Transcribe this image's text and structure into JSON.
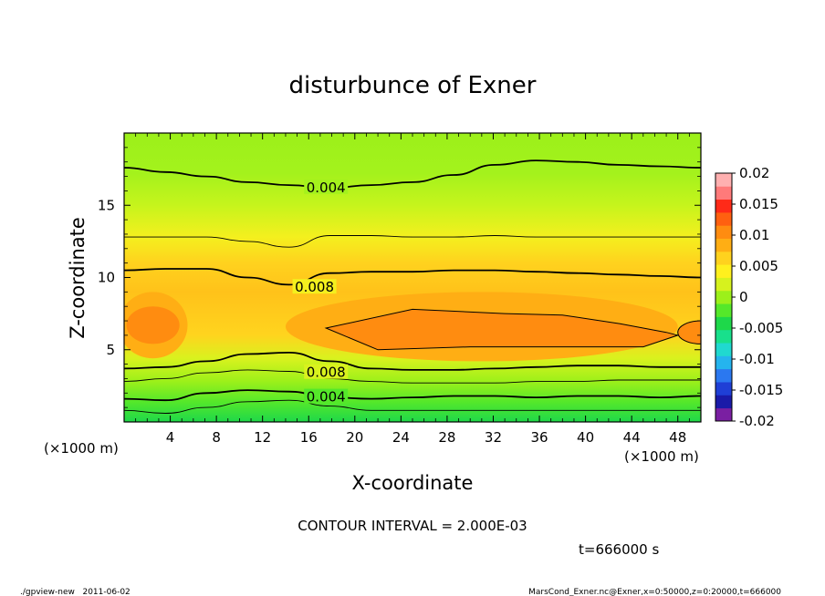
{
  "chart_data": {
    "type": "heatmap",
    "title": "disturbunce of Exner",
    "xlabel": "X-coordinate",
    "ylabel": "Z-coordinate",
    "x_unit": "(×1000 m)",
    "y_unit": "(×1000 m)",
    "xlim": [
      0,
      50
    ],
    "ylim": [
      0,
      20
    ],
    "x_ticks": [
      4,
      8,
      12,
      16,
      20,
      24,
      28,
      32,
      36,
      40,
      44,
      48
    ],
    "y_ticks": [
      5,
      10,
      15
    ],
    "colorbar": {
      "levels": [
        -0.02,
        -0.015,
        -0.01,
        -0.005,
        0,
        0.005,
        0.01,
        0.015,
        0.02
      ],
      "labels": [
        "0.02",
        "0.015",
        "0.01",
        "0.005",
        "0",
        "-0.005",
        "-0.01",
        "-0.015",
        "-0.02"
      ],
      "colors": [
        "#7a1fa2",
        "#1a1aa8",
        "#1f3fd6",
        "#2b78f0",
        "#25b4ee",
        "#20d9d0",
        "#18e08c",
        "#1ed84a",
        "#55e82a",
        "#9cf01a",
        "#d6f21e",
        "#fff01e",
        "#ffd21e",
        "#ffae14",
        "#ff8c10",
        "#ff6010",
        "#ff2a18",
        "#ff7a7a",
        "#ffb0b0"
      ]
    },
    "contour_interval": "CONTOUR INTERVAL = 2.000E-03",
    "contour_labels": [
      "0.004",
      "0.008",
      "0.008",
      "0.004"
    ],
    "contours": [
      {
        "value": 0.004,
        "z": [
          17.6,
          17.3,
          17.0,
          16.6,
          16.4,
          16.2,
          16.4,
          16.6,
          17.1,
          17.8,
          18.1,
          18.0,
          17.8,
          17.7,
          17.6
        ]
      },
      {
        "value": 0.006,
        "z": [
          12.8,
          12.8,
          12.8,
          12.5,
          12.1,
          12.9,
          12.9,
          12.8,
          12.8,
          12.9,
          12.8,
          12.8,
          12.8,
          12.8,
          12.8
        ]
      },
      {
        "value": 0.008,
        "z": [
          10.5,
          10.6,
          10.6,
          10.0,
          9.5,
          10.3,
          10.4,
          10.4,
          10.5,
          10.5,
          10.4,
          10.3,
          10.2,
          10.1,
          10.0
        ]
      },
      {
        "value": 0.008,
        "z": [
          3.7,
          3.8,
          4.2,
          4.7,
          4.8,
          4.2,
          3.7,
          3.6,
          3.6,
          3.7,
          3.8,
          3.9,
          3.9,
          3.8,
          3.8
        ]
      },
      {
        "value": 0.006,
        "z": [
          2.8,
          3.0,
          3.4,
          3.6,
          3.5,
          3.0,
          2.8,
          2.7,
          2.7,
          2.7,
          2.8,
          2.8,
          2.9,
          2.9,
          2.9
        ]
      },
      {
        "value": 0.004,
        "z": [
          1.6,
          1.5,
          2.0,
          2.2,
          2.1,
          1.7,
          1.6,
          1.7,
          1.8,
          1.8,
          1.7,
          1.8,
          1.8,
          1.7,
          1.8
        ]
      },
      {
        "value": 0.002,
        "z": [
          0.8,
          0.6,
          1.0,
          1.4,
          1.5,
          1.1,
          0.8,
          0.8,
          0.8,
          0.8,
          0.8,
          0.8,
          0.8,
          0.8,
          0.8
        ]
      }
    ],
    "closed_contour": {
      "value": 0.01,
      "x": [
        17.5,
        25,
        33,
        38,
        43,
        47,
        48,
        45,
        38,
        30,
        22,
        17.5
      ],
      "z": [
        6.5,
        7.8,
        7.5,
        7.4,
        6.8,
        6.2,
        6.0,
        5.2,
        5.2,
        5.2,
        5.0,
        6.5
      ]
    }
  },
  "time_label": "t=666000 s",
  "footer": {
    "left": "./gpview-new   2011-06-02",
    "right": "MarsCond_Exner.nc@Exner,x=0:50000,z=0:20000,t=666000"
  }
}
